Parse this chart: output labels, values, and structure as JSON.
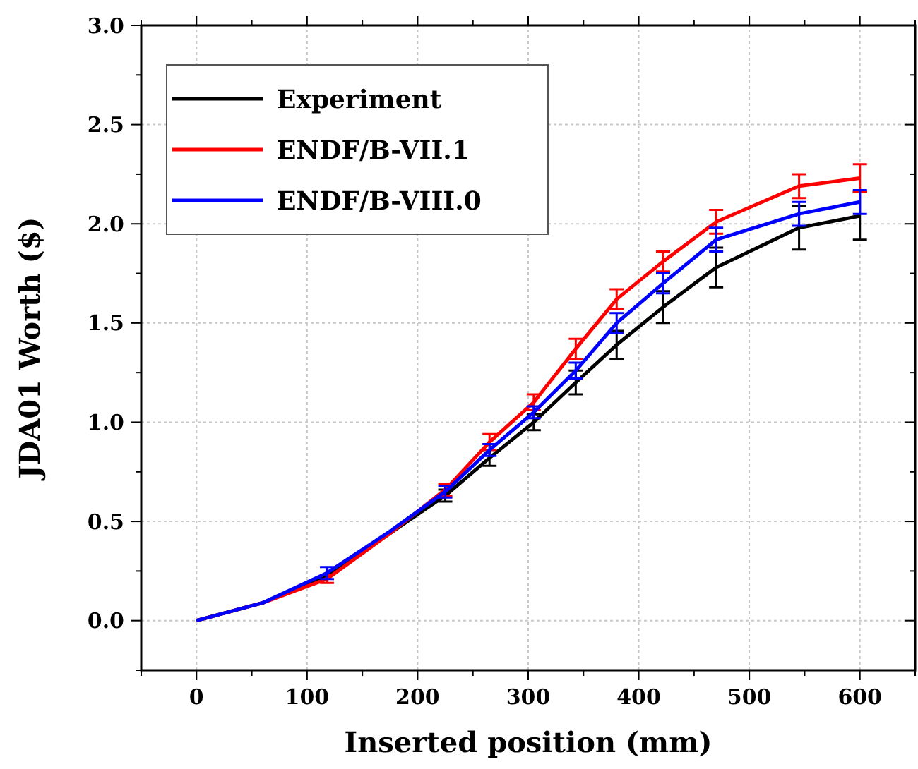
{
  "chart_data": {
    "type": "line",
    "xlabel": "Inserted position (mm)",
    "ylabel": "JDA01 Worth ($)",
    "x": [
      0,
      60,
      118,
      175,
      225,
      265,
      305,
      343,
      380,
      422,
      470,
      545,
      600
    ],
    "series": [
      {
        "name": "Experiment",
        "color": "#000000",
        "values": [
          0,
          0.09,
          0.23,
          0.44,
          0.63,
          0.82,
          1.0,
          1.2,
          1.39,
          1.58,
          1.78,
          1.98,
          2.04
        ],
        "errors": [
          null,
          null,
          null,
          null,
          0.03,
          0.04,
          0.04,
          0.06,
          0.07,
          0.08,
          0.1,
          0.11,
          0.12
        ]
      },
      {
        "name": "ENDF/B-VII.1",
        "color": "#ff0000",
        "values": [
          0,
          0.09,
          0.21,
          0.44,
          0.66,
          0.9,
          1.1,
          1.37,
          1.62,
          1.81,
          2.01,
          2.19,
          2.23
        ],
        "errors": [
          null,
          null,
          0.02,
          null,
          0.03,
          0.04,
          0.04,
          0.05,
          0.05,
          0.05,
          0.06,
          0.06,
          0.07
        ]
      },
      {
        "name": "ENDF/B-VIII.0",
        "color": "#0000ff",
        "values": [
          0,
          0.09,
          0.24,
          0.45,
          0.65,
          0.86,
          1.05,
          1.26,
          1.5,
          1.7,
          1.92,
          2.05,
          2.11
        ],
        "errors": [
          null,
          null,
          0.03,
          null,
          0.03,
          0.03,
          0.03,
          0.04,
          0.05,
          0.05,
          0.06,
          0.06,
          0.06
        ]
      }
    ],
    "xlim": [
      -50,
      650
    ],
    "xticks": [
      {
        "value": -50,
        "label": null
      },
      0,
      {
        "value": 50,
        "label": null
      },
      100,
      {
        "value": 150,
        "label": null
      },
      200,
      {
        "value": 250,
        "label": null
      },
      300,
      {
        "value": 350,
        "label": null
      },
      400,
      {
        "value": 450,
        "label": null
      },
      500,
      {
        "value": 550,
        "label": null
      },
      600,
      {
        "value": 650,
        "label": null
      }
    ],
    "ylim": [
      -0.25,
      3.0
    ],
    "yticks": [
      {
        "value": -0.25,
        "label": null
      },
      "0.0",
      {
        "value": 0.25,
        "label": null
      },
      0.5,
      {
        "value": 0.75,
        "label": null
      },
      "1.0",
      {
        "value": 1.25,
        "label": null
      },
      1.5,
      {
        "value": 1.75,
        "label": null
      },
      "2.0",
      {
        "value": 2.25,
        "label": null
      },
      2.5,
      {
        "value": 2.75,
        "label": null
      },
      "3.0"
    ],
    "grid": true,
    "legend": "top left",
    "line_style": "solid"
  }
}
